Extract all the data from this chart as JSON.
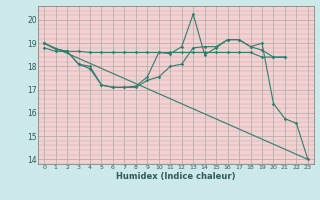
{
  "title": "",
  "xlabel": "Humidex (Indice chaleur)",
  "bg_color": "#cce8e8",
  "plot_bg_color": "#f5d0d0",
  "grid_color": "#aaaaaa",
  "line_color": "#2e7d6e",
  "tick_color": "#2e5a5a",
  "xlim": [
    -0.5,
    23.5
  ],
  "ylim": [
    13.8,
    20.6
  ],
  "yticks": [
    14,
    15,
    16,
    17,
    18,
    19,
    20
  ],
  "xticks": [
    0,
    1,
    2,
    3,
    4,
    5,
    6,
    7,
    8,
    9,
    10,
    11,
    12,
    13,
    14,
    15,
    16,
    17,
    18,
    19,
    20,
    21,
    22,
    23
  ],
  "series": [
    {
      "x": [
        0,
        1,
        2,
        3,
        4,
        5,
        6,
        7,
        8,
        9,
        10,
        11,
        12,
        13,
        14,
        15,
        16,
        17,
        18,
        19,
        20,
        21
      ],
      "y": [
        19.0,
        18.75,
        18.65,
        18.65,
        18.6,
        18.6,
        18.6,
        18.6,
        18.6,
        18.6,
        18.6,
        18.6,
        18.6,
        18.6,
        18.6,
        18.6,
        18.6,
        18.6,
        18.6,
        18.4,
        18.4,
        18.4
      ],
      "markers": true
    },
    {
      "x": [
        0,
        1,
        2,
        3,
        4,
        5,
        6,
        7,
        8,
        9,
        10,
        11,
        12,
        13,
        14,
        15,
        16,
        17,
        18,
        19,
        20,
        21
      ],
      "y": [
        18.8,
        18.65,
        18.65,
        18.1,
        18.0,
        17.2,
        17.1,
        17.1,
        17.1,
        17.4,
        17.55,
        18.0,
        18.1,
        18.8,
        18.85,
        18.85,
        19.15,
        19.15,
        18.85,
        18.7,
        18.4,
        18.4
      ],
      "markers": true
    },
    {
      "x": [
        0,
        1,
        2,
        3,
        4,
        5,
        6,
        7,
        8,
        9,
        10,
        11,
        12,
        13,
        14,
        15,
        16,
        17,
        18,
        19,
        20,
        21,
        22,
        23
      ],
      "y": [
        19.0,
        18.75,
        18.65,
        18.1,
        17.9,
        17.2,
        17.1,
        17.1,
        17.15,
        17.55,
        18.6,
        18.55,
        18.85,
        20.25,
        18.5,
        18.8,
        19.15,
        19.15,
        18.85,
        19.0,
        16.4,
        15.75,
        15.55,
        14.0
      ],
      "markers": true
    },
    {
      "x": [
        0,
        23
      ],
      "y": [
        19.0,
        14.0
      ],
      "markers": false
    }
  ]
}
